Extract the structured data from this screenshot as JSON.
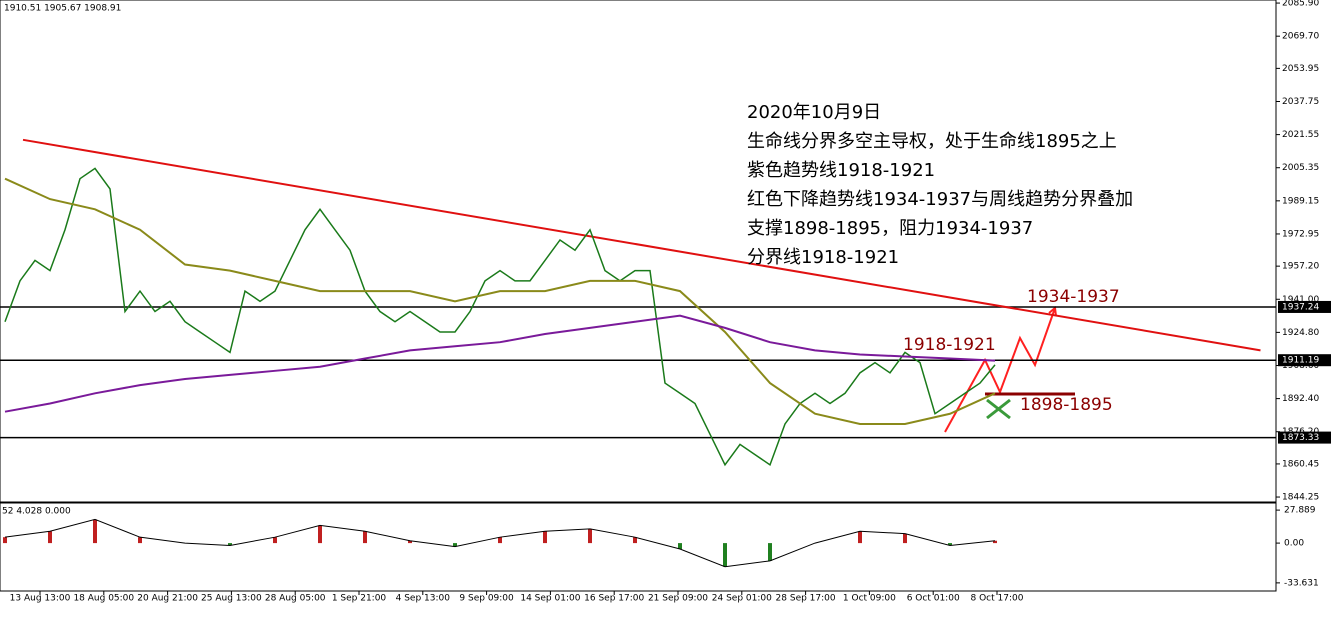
{
  "chart_data": {
    "type": "line",
    "header": "1910.51 1905.67 1908.91",
    "x_labels": [
      "13 Aug 13:00",
      "18 Aug 05:00",
      "20 Aug 21:00",
      "25 Aug 13:00",
      "28 Aug 05:00",
      "1 Sep 21:00",
      "4 Sep 13:00",
      "9 Sep 09:00",
      "14 Sep 01:00",
      "16 Sep 17:00",
      "21 Sep 09:00",
      "24 Sep 01:00",
      "28 Sep 17:00",
      "1 Oct 09:00",
      "6 Oct 01:00",
      "8 Oct 17:00"
    ],
    "ylim": [
      1842.8,
      2087.4
    ],
    "yticks": [
      {
        "value": 2085.9,
        "label": "2085.90"
      },
      {
        "value": 2069.7,
        "label": "2069.70"
      },
      2053.95,
      2037.75,
      2021.55,
      2005.35,
      1989.15,
      1972.95,
      {
        "value": 1957.2,
        "label": "1957.20"
      },
      {
        "value": 1941,
        "label": "1941.00"
      },
      {
        "value": 1924.8,
        "label": "1924.80"
      },
      {
        "value": 1908.6,
        "label": "1908.60"
      },
      {
        "value": 1892.4,
        "label": "1892.40"
      },
      {
        "value": 1876.2,
        "label": "1876.20"
      },
      1860.45,
      1844.25
    ],
    "series": [
      {
        "name": "close",
        "color": "#1a7a1a",
        "step": 1,
        "values": [
          1930,
          1950,
          1960,
          1955,
          1975,
          2000,
          2005,
          1995,
          1935,
          1945,
          1935,
          1940,
          1930,
          1925,
          1920,
          1915,
          1945,
          1940,
          1945,
          1960,
          1975,
          1985,
          1975,
          1965,
          1945,
          1935,
          1930,
          1935,
          1930,
          1925,
          1925,
          1935,
          1950,
          1955,
          1950,
          1950,
          1960,
          1970,
          1965,
          1975,
          1955,
          1950,
          1955,
          1955,
          1900,
          1895,
          1890,
          1875,
          1860,
          1870,
          1865,
          1860,
          1880,
          1890,
          1895,
          1890,
          1895,
          1905,
          1910,
          1905,
          1915,
          1910,
          1885,
          1890,
          1895,
          1900,
          1908.91
        ]
      },
      {
        "name": "ma-fast",
        "color": "#8a8a1a",
        "step": 3,
        "values": [
          2000,
          1990,
          1985,
          1975,
          1958,
          1955,
          1950,
          1945,
          1945,
          1945,
          1940,
          1945,
          1945,
          1950,
          1950,
          1945,
          1925,
          1900,
          1885,
          1880,
          1880,
          1885,
          1895
        ]
      },
      {
        "name": "ma-slow",
        "color": "#7a1a9a",
        "step": 3,
        "values": [
          1886,
          1890,
          1895,
          1899,
          1902,
          1904,
          1906,
          1908,
          1912,
          1916,
          1918,
          1920,
          1924,
          1927,
          1930,
          1933,
          1927,
          1920,
          1916,
          1914,
          1913,
          1912,
          1911
        ]
      }
    ],
    "trendline": {
      "x": [
        1.2,
        83.7
      ],
      "values": [
        2019,
        1916
      ],
      "color": "#e01010"
    },
    "levels": [
      1937.24,
      1911.19,
      1873.33
    ],
    "notes": [
      "2020年10月9日",
      "生命线分界多空主导权，处于生命线1895之上",
      "紫色趋势线1918-1921",
      "红色下降趋势线1934-1937与周线趋势分界叠加",
      "支撑1898-1895，阻力1934-1937",
      "分界线1918-1921"
    ],
    "zone_labels": [
      "1934-1937",
      "1918-1921",
      "1898-1895"
    ],
    "oscillator": {
      "header": "52 4.028 0.000",
      "ylim": [
        -40.5,
        33.9
      ],
      "yticks": [
        27.889,
        {
          "value": 0,
          "label": "0.00"
        },
        -33.631
      ],
      "values": [
        5,
        10,
        20,
        5,
        0,
        -2,
        5,
        15,
        10,
        2,
        -3,
        5,
        10,
        12,
        5,
        -5,
        -20,
        -15,
        0,
        10,
        8,
        -2,
        2
      ],
      "step": 3,
      "color": "#000000"
    }
  }
}
